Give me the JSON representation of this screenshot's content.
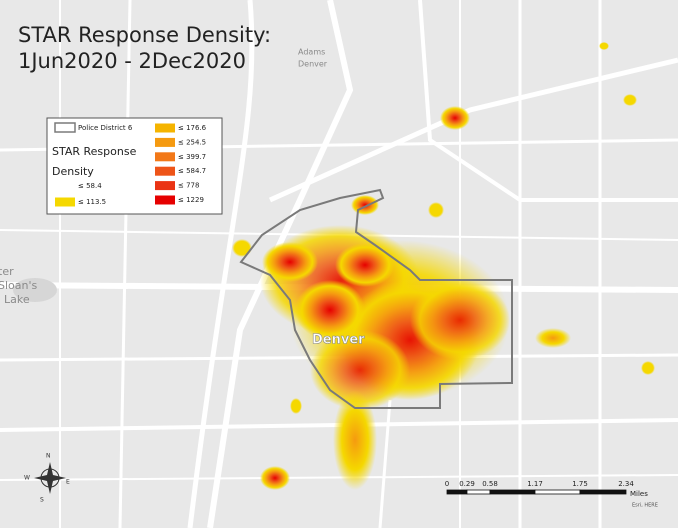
{
  "title": [
    "STAR Response Density:",
    "1Jun2020 - 2Dec2020"
  ],
  "legend": {
    "boundary": "Police District 6",
    "heading": [
      "STAR Response",
      "Density"
    ],
    "classes": [
      {
        "label": "≤ 58.4"
      },
      {
        "label": "≤ 113.5",
        "color": "#f5d800"
      },
      {
        "label": "≤ 176.6",
        "color": "#f5b400"
      },
      {
        "label": "≤ 254.5",
        "color": "#f59a10"
      },
      {
        "label": "≤ 399.7",
        "color": "#f27818"
      },
      {
        "label": "≤ 584.7",
        "color": "#ee5418"
      },
      {
        "label": "≤ 778",
        "color": "#ea3414"
      },
      {
        "label": "≤ 1229",
        "color": "#e60000"
      }
    ]
  },
  "map_labels": {
    "city": "Denver",
    "north": [
      "Adams",
      "Denver"
    ],
    "west": [
      "ter",
      "Sloan's",
      "Lake"
    ]
  },
  "scale_bar": {
    "labels": [
      "0",
      "0.29",
      "0.58",
      "1.17",
      "1.75",
      "2.34"
    ],
    "unit": "Miles"
  },
  "compass": [
    "N",
    "E",
    "S",
    "W"
  ],
  "attribution": "Esri, HERE"
}
